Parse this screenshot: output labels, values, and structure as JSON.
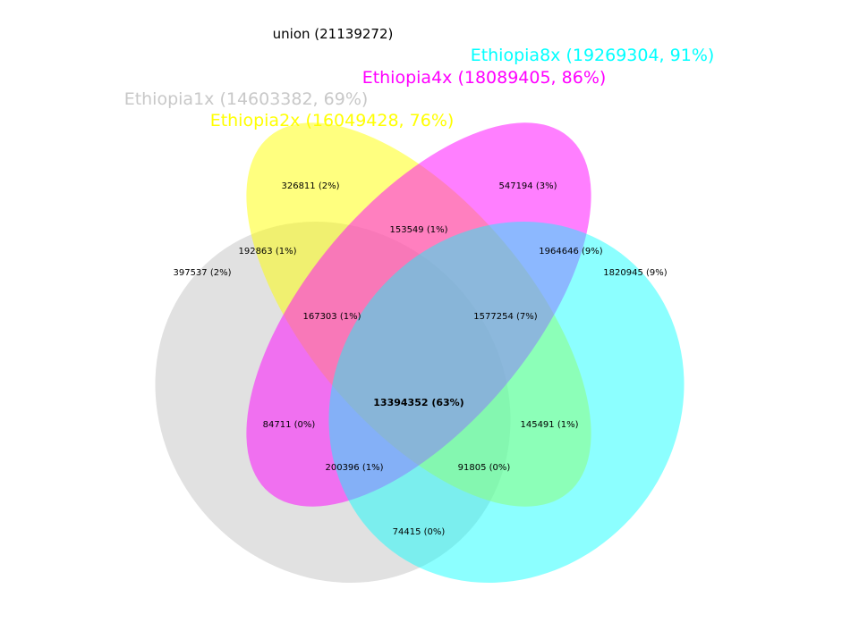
{
  "union_title": "union (21139272)",
  "sets": [
    {
      "key": "e1x",
      "label": "Ethiopia1x (14603382, 69%)",
      "color": "#d9d9d9"
    },
    {
      "key": "e2x",
      "label": "Ethiopia2x (16049428, 76%)",
      "color": "#ffff00"
    },
    {
      "key": "e4x",
      "label": "Ethiopia4x (18089405, 86%)",
      "color": "#ff00ff"
    },
    {
      "key": "e8x",
      "label": "Ethiopia8x (19269304, 91%)",
      "color": "#00ffff"
    }
  ],
  "regions": [
    {
      "name": "only-2x",
      "text": "326811 (2%)"
    },
    {
      "name": "only-4x",
      "text": "547194 (3%)"
    },
    {
      "name": "2x-4x",
      "text": "153549 (1%)"
    },
    {
      "name": "1x-2x",
      "text": "192863 (1%)"
    },
    {
      "name": "4x-8x",
      "text": "1964646 (9%)"
    },
    {
      "name": "only-1x",
      "text": "397537 (2%)"
    },
    {
      "name": "only-8x",
      "text": "1820945 (9%)"
    },
    {
      "name": "1x-2x-4x",
      "text": "167303 (1%)"
    },
    {
      "name": "2x-4x-8x",
      "text": "1577254 (7%)"
    },
    {
      "name": "all-four",
      "text": "13394352 (63%)",
      "bold": true
    },
    {
      "name": "1x-4x",
      "text": "84711 (0%)"
    },
    {
      "name": "2x-8x",
      "text": "145491 (1%)"
    },
    {
      "name": "1x-4x-8x",
      "text": "200396 (1%)"
    },
    {
      "name": "1x-2x-8x",
      "text": "91805 (0%)"
    },
    {
      "name": "1x-8x",
      "text": "74415 (0%)"
    }
  ]
}
